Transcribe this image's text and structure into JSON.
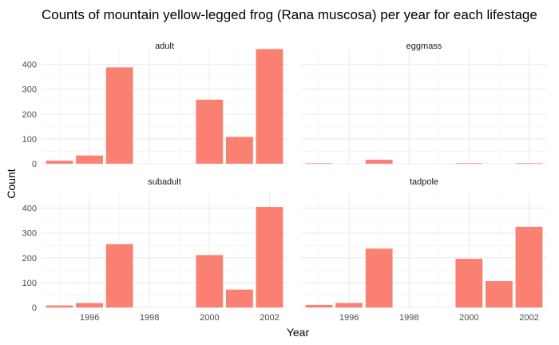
{
  "chart_data": {
    "type": "bar",
    "title": "Counts of mountain yellow-legged frog (Rana muscosa) per year for each lifestage",
    "xlabel": "Year",
    "ylabel": "Count",
    "x_ticks": [
      1996,
      1998,
      2000,
      2002
    ],
    "y_ticks": [
      0,
      100,
      200,
      300,
      400
    ],
    "xlim": [
      1994.4,
      2002.6
    ],
    "ylim": [
      0,
      460
    ],
    "grid": true,
    "bar_color": "#FA8072",
    "facets": [
      {
        "name": "adult",
        "points": [
          {
            "year": 1995,
            "count": 12
          },
          {
            "year": 1996,
            "count": 33
          },
          {
            "year": 1997,
            "count": 388
          },
          {
            "year": 2000,
            "count": 258
          },
          {
            "year": 2001,
            "count": 108
          },
          {
            "year": 2002,
            "count": 462
          }
        ]
      },
      {
        "name": "eggmass",
        "points": [
          {
            "year": 1995,
            "count": 2
          },
          {
            "year": 1997,
            "count": 16
          },
          {
            "year": 2000,
            "count": 2
          },
          {
            "year": 2002,
            "count": 2
          }
        ]
      },
      {
        "name": "subadult",
        "points": [
          {
            "year": 1995,
            "count": 8
          },
          {
            "year": 1996,
            "count": 18
          },
          {
            "year": 1997,
            "count": 255
          },
          {
            "year": 2000,
            "count": 211
          },
          {
            "year": 2001,
            "count": 72
          },
          {
            "year": 2002,
            "count": 405
          }
        ]
      },
      {
        "name": "tadpole",
        "points": [
          {
            "year": 1995,
            "count": 10
          },
          {
            "year": 1996,
            "count": 18
          },
          {
            "year": 1997,
            "count": 237
          },
          {
            "year": 2000,
            "count": 196
          },
          {
            "year": 2001,
            "count": 106
          },
          {
            "year": 2002,
            "count": 325
          }
        ]
      }
    ]
  }
}
